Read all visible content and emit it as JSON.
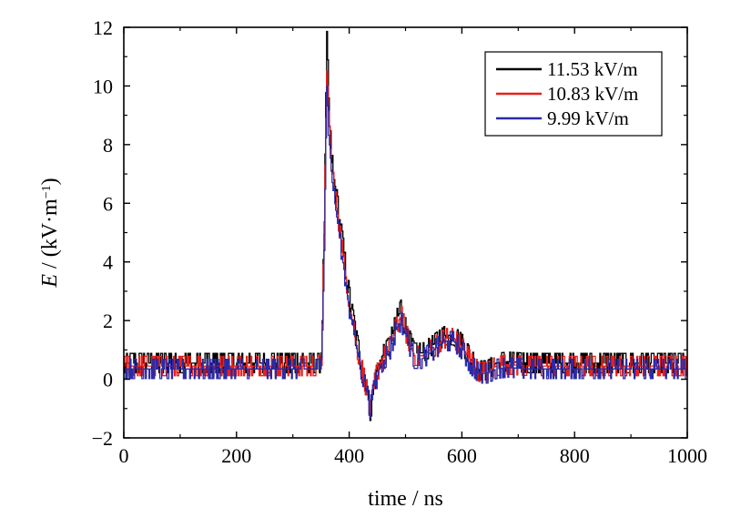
{
  "chart_data": {
    "type": "line",
    "title": "",
    "xlabel": "time / ns",
    "ylabel_italic": "E",
    "ylabel_rest": " / (kV·m",
    "ylabel_sup": "−1",
    "ylabel_close": ")",
    "xlim": [
      0,
      1000
    ],
    "ylim": [
      -2,
      12
    ],
    "xticks": [
      0,
      200,
      400,
      600,
      800,
      1000
    ],
    "yticks": [
      -2,
      0,
      2,
      4,
      6,
      8,
      10,
      12
    ],
    "xtick_labels": [
      "0",
      "200",
      "400",
      "600",
      "800",
      "1000"
    ],
    "ytick_labels": [
      "−2",
      "0",
      "2",
      "4",
      "6",
      "8",
      "10",
      "12"
    ],
    "grid": false,
    "legend_position": "top-right",
    "series": [
      {
        "name": "11.53 kV/m",
        "color": "#000000",
        "noise": 0.45,
        "x": [
          0,
          350,
          355,
          360,
          365,
          370,
          380,
          390,
          400,
          410,
          420,
          430,
          437,
          445,
          455,
          470,
          485,
          492,
          500,
          515,
          530,
          550,
          570,
          585,
          600,
          615,
          630,
          645,
          660,
          680,
          720,
          800,
          900,
          1000
        ],
        "y": [
          0.55,
          0.55,
          5.0,
          11.53,
          8.5,
          7.2,
          5.8,
          4.3,
          2.8,
          1.6,
          0.6,
          -0.3,
          -1.1,
          -0.1,
          0.7,
          1.1,
          2.1,
          2.4,
          1.7,
          0.9,
          0.9,
          1.2,
          1.5,
          1.5,
          1.2,
          0.7,
          0.3,
          0.3,
          0.55,
          0.6,
          0.55,
          0.55,
          0.55,
          0.55
        ]
      },
      {
        "name": "10.83 kV/m",
        "color": "#e8201a",
        "noise": 0.35,
        "x": [
          0,
          350,
          355,
          360,
          365,
          370,
          380,
          390,
          400,
          410,
          420,
          430,
          437,
          445,
          455,
          470,
          485,
          492,
          500,
          515,
          530,
          550,
          570,
          585,
          600,
          615,
          630,
          645,
          660,
          680,
          720,
          800,
          900,
          1000
        ],
        "y": [
          0.45,
          0.45,
          4.8,
          10.83,
          8.2,
          6.9,
          5.5,
          4.0,
          2.6,
          1.4,
          0.5,
          -0.3,
          -1.05,
          -0.1,
          0.6,
          1.0,
          1.9,
          2.2,
          1.6,
          0.8,
          0.8,
          1.1,
          1.4,
          1.4,
          1.1,
          0.6,
          0.25,
          0.25,
          0.45,
          0.5,
          0.45,
          0.45,
          0.45,
          0.45
        ]
      },
      {
        "name": "9.99 kV/m",
        "color": "#2a2aa8",
        "noise": 0.28,
        "x": [
          0,
          350,
          355,
          360,
          365,
          370,
          380,
          390,
          400,
          410,
          420,
          430,
          437,
          445,
          455,
          470,
          485,
          492,
          500,
          515,
          530,
          550,
          570,
          585,
          600,
          615,
          630,
          645,
          660,
          680,
          720,
          800,
          900,
          1000
        ],
        "y": [
          0.35,
          0.35,
          4.5,
          9.99,
          7.9,
          6.6,
          5.2,
          3.8,
          2.4,
          1.3,
          0.4,
          -0.4,
          -1.0,
          -0.2,
          0.5,
          0.9,
          1.8,
          2.0,
          1.5,
          0.7,
          0.7,
          1.0,
          1.3,
          1.3,
          1.0,
          0.5,
          0.2,
          0.2,
          0.35,
          0.4,
          0.35,
          0.35,
          0.35,
          0.35
        ]
      }
    ]
  }
}
